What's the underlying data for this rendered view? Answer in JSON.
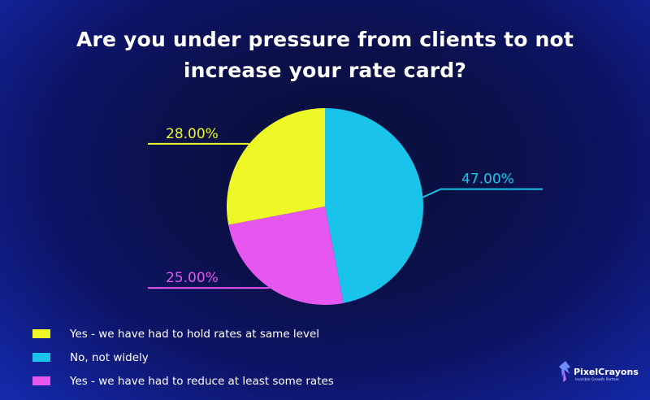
{
  "chart_data": {
    "type": "pie",
    "title_lines": [
      "Are you under pressure from clients to not",
      "increase your rate card?"
    ],
    "slices": [
      {
        "label": "No, not widely",
        "value": 47.0,
        "display": "47.00%",
        "color": "#19c3ea"
      },
      {
        "label": "Yes - we have had to reduce at least some rates",
        "value": 25.0,
        "display": "25.00%",
        "color": "#e657ef"
      },
      {
        "label": "Yes - we have had to hold rates at same level",
        "value": 28.0,
        "display": "28.00%",
        "color": "#eef826"
      }
    ],
    "start": "12 o'clock, clockwise",
    "legend_order": [
      2,
      0,
      1
    ],
    "legend_placement": "bottom-left"
  },
  "brand": {
    "name": "PixelCrayons",
    "tagline": "Invisible Growth Partner"
  }
}
